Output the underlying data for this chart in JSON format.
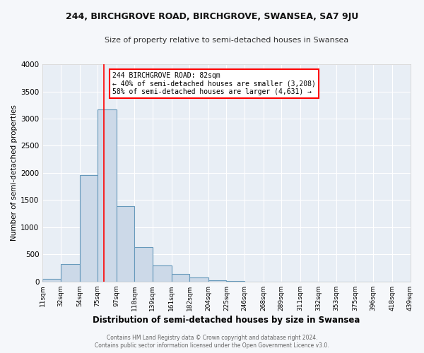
{
  "title": "244, BIRCHGROVE ROAD, BIRCHGROVE, SWANSEA, SA7 9JU",
  "subtitle": "Size of property relative to semi-detached houses in Swansea",
  "xlabel": "Distribution of semi-detached houses by size in Swansea",
  "ylabel": "Number of semi-detached properties",
  "bar_color": "#ccd9e8",
  "bar_edgecolor": "#6699bb",
  "fig_facecolor": "#f5f7fa",
  "axes_facecolor": "#e8eef5",
  "grid_color": "#ffffff",
  "property_line_x": 82,
  "annotation_title": "244 BIRCHGROVE ROAD: 82sqm",
  "annotation_line1": "← 40% of semi-detached houses are smaller (3,208)",
  "annotation_line2": "58% of semi-detached houses are larger (4,631) →",
  "bin_edges": [
    11,
    32,
    54,
    75,
    97,
    118,
    139,
    161,
    182,
    204,
    225,
    246,
    268,
    289,
    311,
    332,
    353,
    375,
    396,
    418,
    439
  ],
  "bin_counts": [
    50,
    320,
    1960,
    3170,
    1390,
    640,
    300,
    135,
    80,
    30,
    5,
    0,
    0,
    0,
    0,
    0,
    0,
    0,
    0,
    0
  ],
  "ylim": [
    0,
    4000
  ],
  "yticks": [
    0,
    500,
    1000,
    1500,
    2000,
    2500,
    3000,
    3500,
    4000
  ],
  "footer1": "Contains HM Land Registry data © Crown copyright and database right 2024.",
  "footer2": "Contains public sector information licensed under the Open Government Licence v3.0."
}
